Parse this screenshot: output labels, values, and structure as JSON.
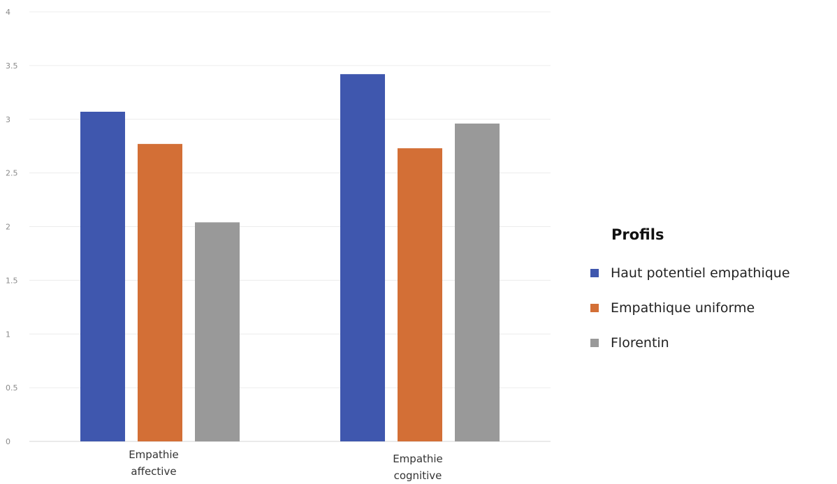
{
  "chart_data": {
    "type": "bar",
    "categories": [
      "Empathie affective",
      "Empathie cognitive"
    ],
    "category_lines": [
      [
        "Empathie",
        "affective"
      ],
      [
        "Empathie",
        "cognitive"
      ]
    ],
    "series": [
      {
        "name": "Haut potentiel empathique",
        "values": [
          3.07,
          3.42
        ],
        "color": "#3f57ae"
      },
      {
        "name": "Empathique uniforme",
        "values": [
          2.77,
          2.73
        ],
        "color": "#d36f36"
      },
      {
        "name": "Florentin",
        "values": [
          2.04,
          2.96
        ],
        "color": "#999999"
      }
    ],
    "y_ticks": [
      "0",
      "0.5",
      "1",
      "1.5",
      "2",
      "2.5",
      "3",
      "3.5",
      "4"
    ],
    "ylim": [
      0,
      4
    ],
    "grid": true,
    "legend_title": "Profils",
    "legend_position": "right",
    "title": "",
    "xlabel": "",
    "ylabel": ""
  }
}
